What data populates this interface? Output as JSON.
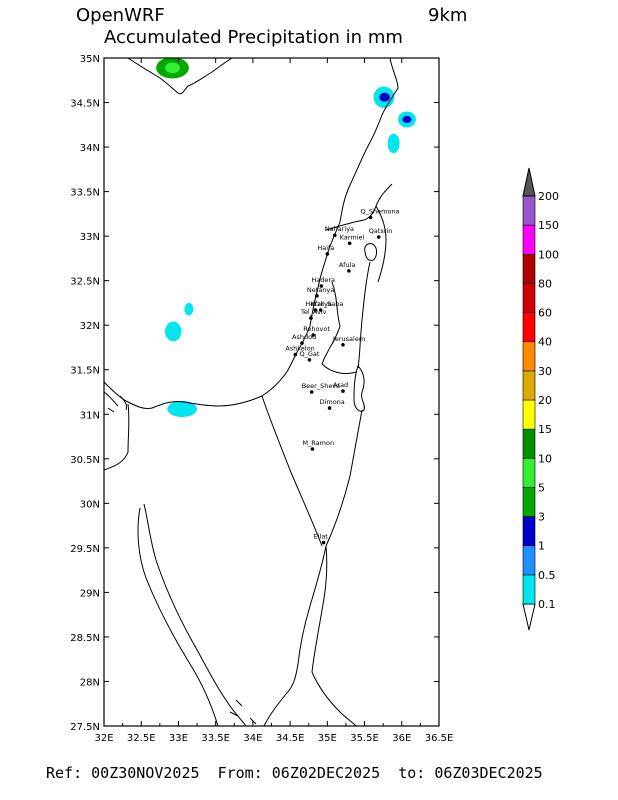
{
  "header": {
    "model": "OpenWRF",
    "resolution": "9km",
    "title": "Accumulated Precipitation in mm"
  },
  "footer": {
    "ref_label": "Ref:",
    "ref": "00Z30NOV2025",
    "from_label": "From:",
    "from": "06Z02DEC2025",
    "to_label": "to:",
    "to": "06Z03DEC2025"
  },
  "map": {
    "lon_ticks": [
      "32E",
      "32.5E",
      "33E",
      "33.5E",
      "34E",
      "34.5E",
      "35E",
      "35.5E",
      "36E",
      "36.5E"
    ],
    "lat_ticks": [
      "35N",
      "34.5N",
      "34N",
      "33.5N",
      "33N",
      "32.5N",
      "32N",
      "31.5N",
      "31N",
      "30.5N",
      "30N",
      "29.5N",
      "29N",
      "28.5N",
      "28N",
      "27.5N"
    ],
    "lon_range": [
      32,
      36.5
    ],
    "lat_range": [
      27.5,
      35
    ],
    "cities": [
      {
        "name": "Q_Shemona",
        "lon": 35.58,
        "lat": 33.21
      },
      {
        "name": "Nahariya",
        "lon": 35.1,
        "lat": 33.01
      },
      {
        "name": "Karmiel",
        "lon": 35.3,
        "lat": 32.92
      },
      {
        "name": "Qatsrin",
        "lon": 35.69,
        "lat": 32.99
      },
      {
        "name": "Haifa",
        "lon": 35.0,
        "lat": 32.8
      },
      {
        "name": "Afula",
        "lon": 35.29,
        "lat": 32.61
      },
      {
        "name": "Hadera",
        "lon": 34.92,
        "lat": 32.44
      },
      {
        "name": "Netanya",
        "lon": 34.86,
        "lat": 32.33
      },
      {
        "name": "Herzliya",
        "lon": 34.84,
        "lat": 32.17
      },
      {
        "name": "Kfar_Saba",
        "lon": 34.91,
        "lat": 32.17
      },
      {
        "name": "Tel_Aviv",
        "lon": 34.78,
        "lat": 32.08
      },
      {
        "name": "Rehovot",
        "lon": 34.81,
        "lat": 31.89
      },
      {
        "name": "Ashdod",
        "lon": 34.66,
        "lat": 31.8
      },
      {
        "name": "Jerusalem",
        "lon": 35.21,
        "lat": 31.78
      },
      {
        "name": "Ashkelon",
        "lon": 34.57,
        "lat": 31.67
      },
      {
        "name": "Q_Gat",
        "lon": 34.76,
        "lat": 31.61
      },
      {
        "name": "Beer_Sheva",
        "lon": 34.79,
        "lat": 31.25
      },
      {
        "name": "Arad",
        "lon": 35.21,
        "lat": 31.26
      },
      {
        "name": "Dimona",
        "lon": 35.03,
        "lat": 31.07
      },
      {
        "name": "M_Ramon",
        "lon": 34.8,
        "lat": 30.61
      },
      {
        "name": "Eilat",
        "lon": 34.95,
        "lat": 29.56
      }
    ],
    "precip_cells": [
      {
        "lon": 32.92,
        "lat": 34.89,
        "rx": 0.22,
        "ry": 0.12,
        "level": "3"
      },
      {
        "lon": 32.92,
        "lat": 34.89,
        "rx": 0.1,
        "ry": 0.06,
        "level": "5"
      },
      {
        "lon": 35.76,
        "lat": 34.56,
        "rx": 0.14,
        "ry": 0.12,
        "level": "0.1"
      },
      {
        "lon": 35.77,
        "lat": 34.56,
        "rx": 0.07,
        "ry": 0.05,
        "level": "1"
      },
      {
        "lon": 36.07,
        "lat": 34.31,
        "rx": 0.12,
        "ry": 0.09,
        "level": "0.1"
      },
      {
        "lon": 36.07,
        "lat": 34.31,
        "rx": 0.06,
        "ry": 0.04,
        "level": "1"
      },
      {
        "lon": 35.89,
        "lat": 34.04,
        "rx": 0.08,
        "ry": 0.11,
        "level": "0.1"
      },
      {
        "lon": 33.14,
        "lat": 32.18,
        "rx": 0.06,
        "ry": 0.07,
        "level": "0.1"
      },
      {
        "lon": 32.93,
        "lat": 31.93,
        "rx": 0.11,
        "ry": 0.11,
        "level": "0.1"
      },
      {
        "lon": 33.05,
        "lat": 31.06,
        "rx": 0.2,
        "ry": 0.09,
        "level": "0.1"
      }
    ]
  },
  "colorbar": {
    "levels": [
      "0.1",
      "0.5",
      "1",
      "3",
      "5",
      "10",
      "15",
      "20",
      "30",
      "40",
      "60",
      "80",
      "100",
      "150",
      "200"
    ],
    "colors": [
      "#00e5ee",
      "#1e90ff",
      "#0000cd",
      "#00a800",
      "#33ee33",
      "#009000",
      "#ffff00",
      "#ddaa00",
      "#ff8c00",
      "#ff0000",
      "#d00000",
      "#b00000",
      "#ff00ff",
      "#9955cc",
      "#555555"
    ]
  }
}
